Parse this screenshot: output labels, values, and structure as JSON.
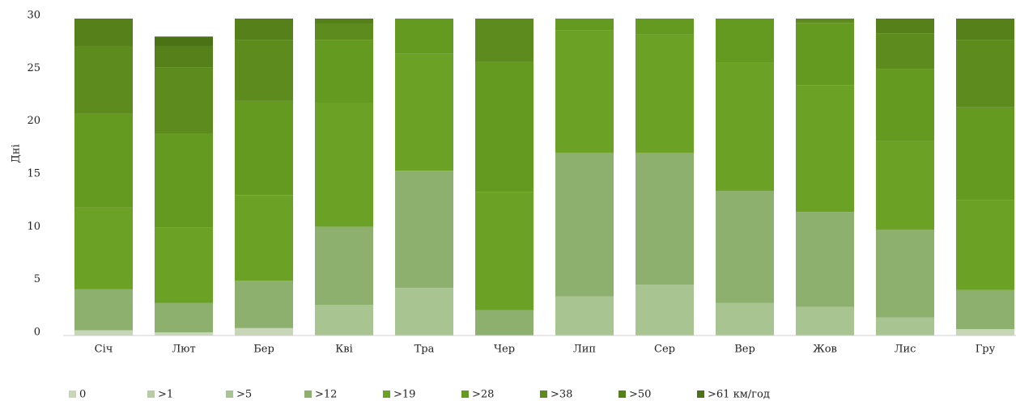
{
  "chart_data": {
    "type": "stacked_bar",
    "y_label": "Дні",
    "categories": [
      "Січ",
      "Лют",
      "Бер",
      "Кві",
      "Тра",
      "Чер",
      "Лип",
      "Сер",
      "Вер",
      "Жов",
      "Лис",
      "Гру"
    ],
    "ylim": [
      0,
      30
    ],
    "yticks": [
      0,
      5,
      10,
      15,
      20,
      25,
      30
    ],
    "grid": false,
    "legend": "bottom",
    "series": [
      {
        "name": "0",
        "color": "#c8d6b8",
        "values": [
          0.5,
          0.3,
          0.7,
          0,
          0,
          0,
          0,
          0,
          0,
          0,
          0,
          0.6
        ]
      },
      {
        "name": ">1",
        "color": "#b7cca3",
        "values": [
          0,
          0,
          0,
          0,
          0,
          0,
          0,
          0,
          0,
          0,
          0,
          0
        ]
      },
      {
        "name": ">5",
        "color": "#a7c491",
        "values": [
          0,
          0,
          0,
          2.9,
          4.5,
          0,
          3.7,
          4.8,
          3.1,
          2.7,
          1.7,
          0
        ]
      },
      {
        "name": ">12",
        "color": "#8db06e",
        "values": [
          3.9,
          2.8,
          4.5,
          7.4,
          11.1,
          2.4,
          13.6,
          12.5,
          10.6,
          9.0,
          8.3,
          3.7
        ]
      },
      {
        "name": ">19",
        "color": "#6ba226",
        "values": [
          7.7,
          7.1,
          8.1,
          11.7,
          11.1,
          11.2,
          11.6,
          11.2,
          12.1,
          12.0,
          8.4,
          8.5
        ]
      },
      {
        "name": ">28",
        "color": "#659a20",
        "values": [
          8.9,
          8.9,
          8.9,
          6.0,
          3.3,
          12.3,
          1.1,
          1.5,
          4.2,
          5.9,
          6.8,
          8.8
        ]
      },
      {
        "name": ">38",
        "color": "#5d8b1d",
        "values": [
          6.4,
          6.3,
          5.8,
          1.5,
          0,
          4.1,
          0,
          0,
          0,
          0.4,
          3.4,
          6.4
        ]
      },
      {
        "name": ">50",
        "color": "#56801a",
        "values": [
          2.6,
          2.0,
          2.0,
          0.5,
          0,
          0,
          0,
          0,
          0,
          0,
          1.4,
          2.0
        ]
      },
      {
        "name": ">61 км/год",
        "color": "#4c7216",
        "values": [
          0,
          0.9,
          0,
          0,
          0,
          0,
          0,
          0,
          0,
          0,
          0,
          0
        ]
      }
    ]
  }
}
